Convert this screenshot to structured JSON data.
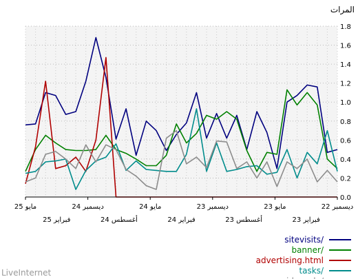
{
  "footer": "LiveInternet",
  "chart_data": {
    "type": "line",
    "ylabel": "المرات",
    "ylim": [
      0,
      1.8
    ],
    "yticks": [
      "0.0",
      "0.2",
      "0.4",
      "0.6",
      "0.8",
      "1.0",
      "1.2",
      "1.4",
      "1.6",
      "1.8"
    ],
    "grid": true,
    "legend_position": "bottom-right",
    "x_direction": "right-to-left",
    "x_labels_row1": [
      "ديسمبر 22",
      "مايو 23",
      "ديسمبر 23",
      "مايو 24",
      "ديسمبر 24",
      "مايو 25"
    ],
    "x_labels_row2": [
      "فبراير 23",
      "أغسطس 23",
      "فبراير 24",
      "أغسطس 24",
      "فبراير 25"
    ],
    "series": [
      {
        "name": "sitevisits/",
        "color": "#00007f",
        "values": [
          0.5,
          0.47,
          1.16,
          1.18,
          1.07,
          1.0,
          0.3,
          0.68,
          0.9,
          0.5,
          0.86,
          0.62,
          0.88,
          0.62,
          1.1,
          0.78,
          0.66,
          0.49,
          0.7,
          0.8,
          0.44,
          0.93,
          0.61,
          1.26,
          1.68,
          1.22,
          0.9,
          0.87,
          1.07,
          1.1,
          0.77,
          0.76
        ]
      },
      {
        "name": "banner/",
        "color": "#008000",
        "values": [
          0.3,
          0.4,
          0.97,
          1.1,
          0.97,
          1.13,
          0.45,
          0.47,
          0.27,
          0.49,
          0.82,
          0.9,
          0.82,
          0.86,
          0.67,
          0.57,
          0.77,
          0.44,
          0.33,
          0.33,
          0.4,
          0.46,
          0.5,
          0.65,
          0.5,
          0.49,
          0.49,
          0.5,
          0.57,
          0.65,
          0.5,
          0.27
        ]
      },
      {
        "name": "advertising.html",
        "color": "#b00000",
        "values": [
          0.0,
          0.0,
          0.0,
          0.0,
          0.0,
          0.0,
          0.0,
          0.0,
          0.0,
          0.0,
          0.0,
          0.0,
          0.0,
          0.0,
          0.0,
          0.0,
          0.0,
          0.0,
          0.0,
          0.0,
          0.0,
          0.0,
          0.0,
          1.47,
          0.6,
          0.27,
          0.42,
          0.33,
          0.3,
          1.22,
          0.53,
          0.14
        ]
      },
      {
        "name": "tasks/",
        "color": "#008c8c",
        "values": [
          0.27,
          0.7,
          0.35,
          0.47,
          0.2,
          0.5,
          0.26,
          0.24,
          0.33,
          0.32,
          0.29,
          0.27,
          0.57,
          0.27,
          0.93,
          0.45,
          0.27,
          0.27,
          0.28,
          0.29,
          0.38,
          0.28,
          0.56,
          0.42,
          0.38,
          0.28,
          0.08,
          0.4,
          0.38,
          0.37,
          0.27,
          0.25
        ]
      },
      {
        "name": "videosale/",
        "color": "#8c8c8c",
        "values": [
          0.16,
          0.28,
          0.16,
          0.4,
          0.3,
          0.37,
          0.11,
          0.37,
          0.2,
          0.37,
          0.3,
          0.58,
          0.59,
          0.31,
          0.42,
          0.35,
          0.7,
          0.62,
          0.08,
          0.12,
          0.22,
          0.29,
          0.5,
          0.55,
          0.37,
          0.55,
          0.3,
          0.4,
          0.48,
          0.45,
          0.2,
          0.16
        ]
      }
    ]
  }
}
